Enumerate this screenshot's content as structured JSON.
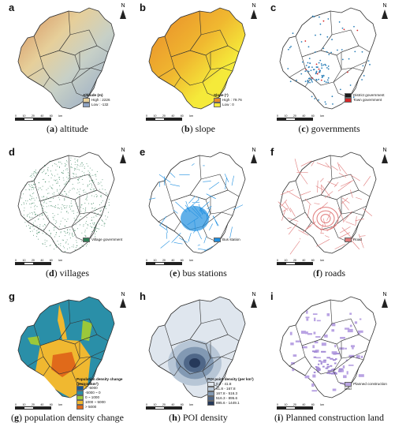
{
  "panels": [
    {
      "letter": "a",
      "caption": "altitude",
      "legend": {
        "title": "Altitude (m)",
        "items": [
          {
            "label": "High : 2226",
            "color": "#e8d09a"
          },
          {
            "label": "Low : -132",
            "color": "#8ea3c4"
          }
        ]
      }
    },
    {
      "letter": "b",
      "caption": "slope",
      "legend": {
        "title": "Slope (°)",
        "items": [
          {
            "label": "High : 79.76",
            "color": "#e8882a"
          },
          {
            "label": "Low : 0",
            "color": "#f5ea3a"
          }
        ]
      }
    },
    {
      "letter": "c",
      "caption": "governments",
      "legend": {
        "title": "",
        "items": [
          {
            "label": "District government",
            "color": "#1a1a1a"
          },
          {
            "label": "Town government",
            "color": "#d62728"
          }
        ]
      }
    },
    {
      "letter": "d",
      "caption": "villages",
      "legend": {
        "title": "",
        "items": [
          {
            "label": "Village government",
            "color": "#2e7d55"
          }
        ]
      }
    },
    {
      "letter": "e",
      "caption": "bus stations",
      "legend": {
        "title": "",
        "items": [
          {
            "label": "Bus station",
            "color": "#1e8fe0"
          }
        ]
      }
    },
    {
      "letter": "f",
      "caption": "roads",
      "legend": {
        "title": "",
        "items": [
          {
            "label": "Road",
            "color": "#e07a7a"
          }
        ]
      }
    },
    {
      "letter": "g",
      "caption": "population density change",
      "legend": {
        "title": "Population density change (person/km²)",
        "items": [
          {
            "label": "< -5000",
            "color": "#1a5a8f"
          },
          {
            "label": "-5000 ~ 0",
            "color": "#2a8fa8"
          },
          {
            "label": "0 ~ 1000",
            "color": "#9bc83a"
          },
          {
            "label": "1000 ~ 5000",
            "color": "#f0b830"
          },
          {
            "label": "> 5000",
            "color": "#e06a1a"
          }
        ]
      }
    },
    {
      "letter": "h",
      "caption": "POI density",
      "legend": {
        "title": "POI point density (per km²)",
        "items": [
          {
            "label": "0.2 - 41.8",
            "color": "#dfe6ee"
          },
          {
            "label": "41.8 - 167.8",
            "color": "#b7c6d6"
          },
          {
            "label": "167.8 - 516.3",
            "color": "#8299b3"
          },
          {
            "label": "516.3 - 895.6",
            "color": "#4f6788"
          },
          {
            "label": "895.6 - 1449.1",
            "color": "#26395a"
          }
        ]
      }
    },
    {
      "letter": "i",
      "caption": "Planned construction land",
      "legend": {
        "title": "",
        "items": [
          {
            "label": "Planned construction land",
            "color": "#b9a3e3"
          }
        ]
      }
    }
  ],
  "north_label": "N",
  "scale_labels": [
    "0",
    "10",
    "20",
    "40",
    "60"
  ],
  "scale_unit": "km"
}
